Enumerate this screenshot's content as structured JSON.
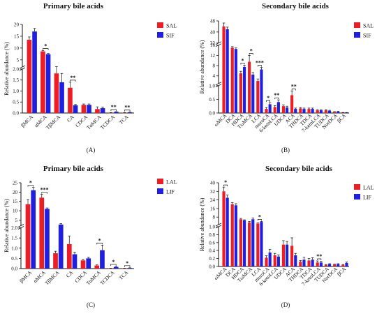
{
  "colors": {
    "series_a": "#ee1c25",
    "series_b": "#1f1fe0",
    "axis": "#111111"
  },
  "chart_data": [
    {
      "type": "bar",
      "panel_label": "(A)",
      "title": "Primary bile acids",
      "ylabel": "Relative abundance (%)",
      "categories": [
        "βMCA",
        "αMCA",
        "TβMCA",
        "CA",
        "CDCA",
        "TαMCA",
        "TCDCA",
        "TCA"
      ],
      "series": [
        {
          "name": "SAL",
          "values": [
            13.5,
            8.6,
            1.8,
            1.15,
            0.37,
            0.18,
            0.01,
            0.01
          ],
          "errors": [
            1.2,
            0.3,
            0.3,
            0.25,
            0.04,
            0.1,
            0.01,
            0.01
          ]
        },
        {
          "name": "SIF",
          "values": [
            17.0,
            7.4,
            1.4,
            0.35,
            0.37,
            0.22,
            0.05,
            0.03
          ],
          "errors": [
            1.3,
            0.3,
            0.4,
            0.04,
            0.04,
            0.05,
            0.01,
            0.01
          ]
        }
      ],
      "y_breaks": [
        {
          "range": [
            0,
            2.0
          ],
          "ticks": [
            "0.0",
            "0.5",
            "1.0",
            "1.5",
            "2.0"
          ]
        },
        {
          "range": [
            2,
            20
          ],
          "ticks": [
            "5",
            "10",
            "15",
            "20"
          ]
        }
      ],
      "significance": [
        {
          "index": 1,
          "label": "*"
        },
        {
          "index": 3,
          "label": "**"
        },
        {
          "index": 6,
          "label": "**"
        },
        {
          "index": 7,
          "label": "**"
        }
      ],
      "legend_position": "top-right"
    },
    {
      "type": "bar",
      "panel_label": "(B)",
      "title": "Secondary bile acids",
      "ylabel": "Relative abundance (%)",
      "categories": [
        "ωMCA",
        "DCA",
        "HDCA",
        "TωMCA",
        "LCA",
        "muroCA",
        "6-ketoLCA",
        "UDCA",
        "ACA",
        "THDCA",
        "TDCA",
        "7-ketoLCA",
        "TUDCA",
        "NorDCA",
        "βCA"
      ],
      "series": [
        {
          "name": "SAL",
          "values": [
            44,
            15,
            5,
            9.5,
            2,
            0.15,
            0.22,
            0.25,
            0.65,
            0.17,
            0.15,
            0.1,
            0.1,
            0.04,
            0.01
          ],
          "errors": [
            2.5,
            0.4,
            0.8,
            2.5,
            0.8,
            0.05,
            0.05,
            0.05,
            0.15,
            0.03,
            0.03,
            0.02,
            0.02,
            0.01,
            0.01
          ]
        },
        {
          "name": "SIF",
          "values": [
            42,
            14.5,
            7.5,
            4.5,
            6.5,
            0.32,
            0.4,
            0.2,
            0.15,
            0.15,
            0.15,
            0.1,
            0.08,
            0.05,
            0.01
          ],
          "errors": [
            1.5,
            0.4,
            0.7,
            0.8,
            0.8,
            0.06,
            0.08,
            0.05,
            0.03,
            0.03,
            0.03,
            0.02,
            0.02,
            0.01,
            0.01
          ]
        }
      ],
      "y_breaks": [
        {
          "range": [
            0,
            1.0
          ],
          "ticks": [
            "0.0",
            "0.5",
            "1.0"
          ]
        },
        {
          "range": [
            1.0,
            16
          ],
          "ticks": [
            "4",
            "8",
            "12",
            "16"
          ]
        },
        {
          "range": [
            32,
            48
          ],
          "ticks": [
            "32",
            "40",
            "48"
          ]
        }
      ],
      "significance": [
        {
          "index": 2,
          "label": "*"
        },
        {
          "index": 3,
          "label": "*"
        },
        {
          "index": 4,
          "label": "***"
        },
        {
          "index": 5,
          "label": "*"
        },
        {
          "index": 6,
          "label": "**"
        },
        {
          "index": 8,
          "label": "**"
        }
      ],
      "legend_position": "top-right"
    },
    {
      "type": "bar",
      "panel_label": "(C)",
      "title": "Primary bile acids",
      "ylabel": "Relative abundance (%)",
      "categories": [
        "βMCA",
        "αMCA",
        "TβMCA",
        "CA",
        "CDCA",
        "TαMCA",
        "TCDCA",
        "TCA"
      ],
      "series": [
        {
          "name": "LAL",
          "values": [
            13.5,
            17,
            0.75,
            1.2,
            0.4,
            0.15,
            0.01,
            0.01
          ],
          "errors": [
            2.5,
            1.8,
            0.1,
            0.4,
            0.05,
            0.03,
            0.01,
            0.01
          ]
        },
        {
          "name": "LIF",
          "values": [
            21,
            11,
            2.6,
            0.7,
            0.5,
            0.9,
            0.08,
            0.03
          ],
          "errors": [
            1.5,
            0.5,
            0.5,
            0.1,
            0.05,
            0.25,
            0.02,
            0.01
          ]
        }
      ],
      "y_breaks": [
        {
          "range": [
            0,
            2.0
          ],
          "ticks": [
            "0.0",
            "0.5",
            "1.0",
            "1.5",
            "2.0"
          ]
        },
        {
          "range": [
            2,
            25
          ],
          "ticks": [
            "5",
            "10",
            "15",
            "20",
            "25"
          ]
        }
      ],
      "significance": [
        {
          "index": 0,
          "label": "*"
        },
        {
          "index": 1,
          "label": "***"
        },
        {
          "index": 5,
          "label": "*"
        },
        {
          "index": 6,
          "label": "*"
        },
        {
          "index": 7,
          "label": "*"
        }
      ],
      "legend_position": "top-right"
    },
    {
      "type": "bar",
      "panel_label": "(D)",
      "title": "Secondary bile acids",
      "ylabel": "Relative abundance (%)",
      "categories": [
        "ωMCA",
        "DCA",
        "HDCA",
        "TωMCA",
        "LCA",
        "muroCA",
        "6-ketoLCA",
        "UDCA",
        "ACA",
        "THDCA",
        "TDCA",
        "7-ketoLCA",
        "TUDCA",
        "NorDCA",
        "βCA"
      ],
      "series": [
        {
          "name": "LAL",
          "values": [
            32,
            20,
            6,
            3,
            2,
            0.22,
            0.28,
            0.55,
            0.52,
            0.12,
            0.15,
            0.1,
            0.04,
            0.05,
            0.04
          ],
          "errors": [
            4,
            1.5,
            0.8,
            1,
            0.6,
            0.05,
            0.05,
            0.1,
            0.2,
            0.03,
            0.05,
            0.04,
            0.01,
            0.01,
            0.01
          ]
        },
        {
          "name": "LIF",
          "values": [
            26,
            19,
            5,
            6,
            3.5,
            0.35,
            0.25,
            0.55,
            0.28,
            0.17,
            0.17,
            0.1,
            0.06,
            0.06,
            0.09
          ],
          "errors": [
            2.5,
            1.5,
            0.5,
            1.2,
            0.5,
            0.08,
            0.04,
            0.08,
            0.05,
            0.06,
            0.05,
            0.03,
            0.01,
            0.01,
            0.02
          ]
        }
      ],
      "y_breaks": [
        {
          "range": [
            0,
            1.0
          ],
          "ticks": [
            "0.0",
            "0.2",
            "0.4",
            "0.6",
            "0.8",
            "1.0"
          ]
        },
        {
          "range": [
            1.0,
            40
          ],
          "ticks": [
            "8",
            "16",
            "24",
            "32",
            "40"
          ]
        }
      ],
      "significance": [
        {
          "index": 0,
          "label": "*"
        },
        {
          "index": 4,
          "label": "*"
        },
        {
          "index": 11,
          "label": "**"
        }
      ],
      "legend_position": "top-right"
    }
  ]
}
